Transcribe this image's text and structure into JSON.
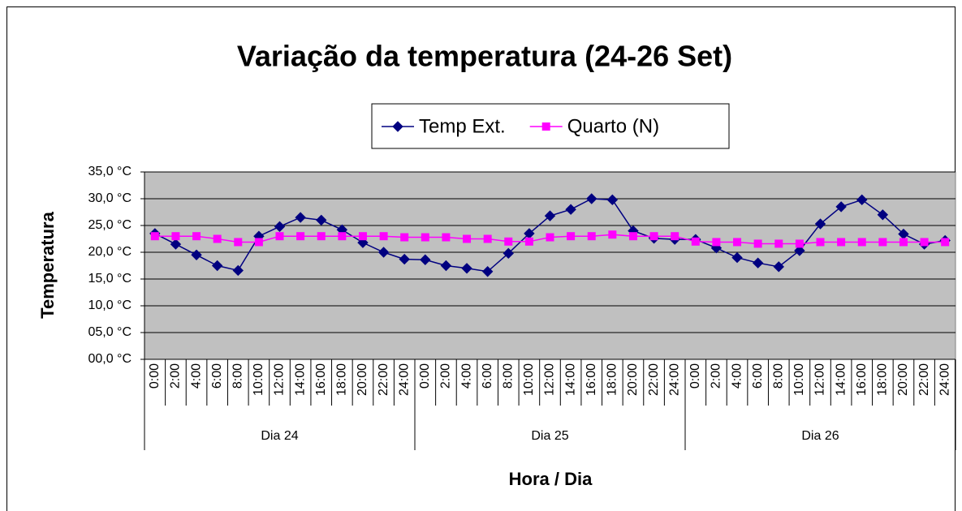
{
  "chart_data": {
    "type": "line",
    "title": "Variação da temperatura (24-26 Set)",
    "y_label": "Temperatura",
    "x_label": "Hora / Dia",
    "categories": [
      "0:00",
      "2:00",
      "4:00",
      "6:00",
      "8:00",
      "10:00",
      "12:00",
      "14:00",
      "16:00",
      "18:00",
      "20:00",
      "22:00",
      "24:00",
      "0:00",
      "2:00",
      "4:00",
      "6:00",
      "8:00",
      "10:00",
      "12:00",
      "14:00",
      "16:00",
      "18:00",
      "20:00",
      "22:00",
      "24:00",
      "0:00",
      "2:00",
      "4:00",
      "6:00",
      "8:00",
      "10:00",
      "12:00",
      "14:00",
      "16:00",
      "18:00",
      "20:00",
      "22:00",
      "24:00"
    ],
    "category_groups": [
      "Dia 24",
      "Dia 25",
      "Dia 26"
    ],
    "series": [
      {
        "name": "Temp Ext.",
        "color": "#000080",
        "marker": "diamond",
        "values": [
          23.5,
          21.5,
          19.5,
          17.5,
          16.6,
          23.0,
          24.8,
          26.5,
          26.0,
          24.2,
          21.8,
          20.0,
          18.7,
          18.6,
          17.5,
          17.0,
          16.4,
          19.8,
          23.5,
          26.8,
          28.0,
          30.0,
          29.8,
          24.0,
          22.6,
          22.4,
          22.4,
          20.8,
          19.0,
          18.0,
          17.3,
          20.3,
          25.3,
          28.5,
          29.8,
          27.0,
          23.4,
          21.5,
          22.2
        ]
      },
      {
        "name": "Quarto (N)",
        "color": "#ff00ff",
        "marker": "square",
        "values": [
          23.0,
          23.0,
          23.0,
          22.5,
          21.9,
          21.9,
          23.0,
          23.0,
          23.0,
          23.0,
          23.0,
          23.0,
          22.8,
          22.8,
          22.8,
          22.5,
          22.5,
          22.0,
          22.0,
          22.8,
          23.0,
          23.0,
          23.3,
          23.0,
          23.0,
          23.0,
          22.0,
          21.9,
          21.9,
          21.6,
          21.6,
          21.6,
          21.9,
          21.9,
          21.9,
          21.9,
          21.9,
          21.9,
          21.9
        ]
      }
    ],
    "ylim": [
      0,
      35
    ],
    "yticks": [
      {
        "value": 0,
        "label": "00,0 °C"
      },
      {
        "value": 5,
        "label": "05,0 °C"
      },
      {
        "value": 10,
        "label": "10,0 °C"
      },
      {
        "value": 15,
        "label": "15,0 °C"
      },
      {
        "value": 20,
        "label": "20,0 °C"
      },
      {
        "value": 25,
        "label": "25,0 °C"
      },
      {
        "value": 30,
        "label": "30,0 °C"
      },
      {
        "value": 35,
        "label": "35,0 °C"
      }
    ],
    "grid": true,
    "legend": "top",
    "plot_background": "#c0c0c0"
  }
}
